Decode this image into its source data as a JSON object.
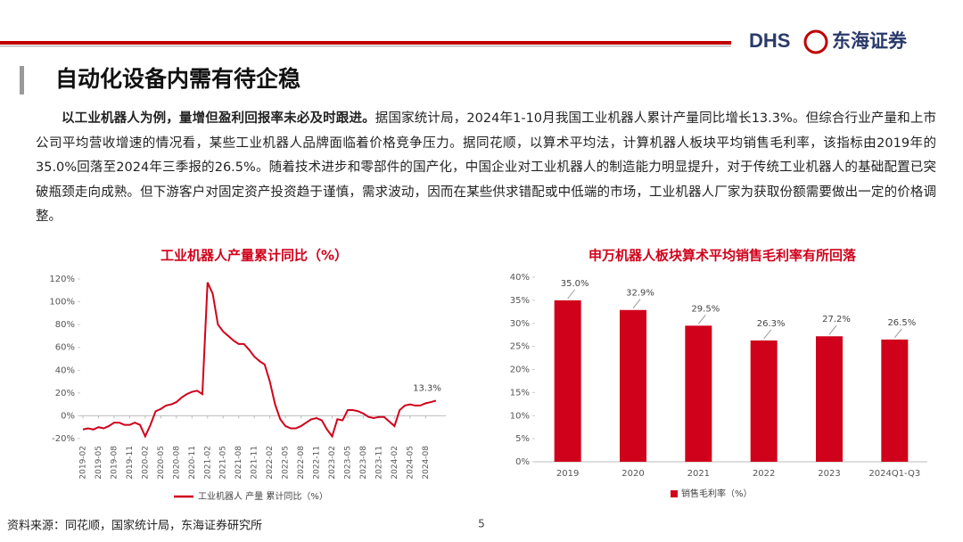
{
  "header": {
    "title": "自动化设备内需有待企稳",
    "logo_latin": "DHS",
    "logo_cn": "东海证券"
  },
  "body": {
    "bold": "以工业机器人为例，量增但盈利回报率未必及时跟进。",
    "text": "据国家统计局，2024年1-10月我国工业机器人累计产量同比增长13.3%。但综合行业产量和上市公司平均营收增速的情况看，某些工业机器人品牌面临着价格竞争压力。据同花顺，以算术平均法，计算机器人板块平均销售毛利率，该指标由2019年的35.0%回落至2024年三季报的26.5%。随着技术进步和零部件的国产化，中国企业对工业机器人的制造能力明显提升，对于传统工业机器人的基础配置已突破瓶颈走向成熟。但下游客户对固定资产投资趋于谨慎，需求波动，因而在某些供求错配或中低端的市场，工业机器人厂家为获取份额需要做出一定的价格调整。"
  },
  "footer": {
    "source": "资料来源：同花顺，国家统计局，东海证券研究所",
    "page": "5"
  },
  "chart_data": [
    {
      "type": "line",
      "title": "工业机器人产量累计同比（%）",
      "categories": [
        "2019-02",
        null,
        null,
        "2019-05",
        null,
        null,
        "2019-08",
        null,
        null,
        "2019-11",
        null,
        null,
        "2020-02",
        null,
        null,
        "2020-05",
        null,
        null,
        "2020-08",
        null,
        null,
        "2020-11",
        null,
        null,
        "2021-02",
        null,
        null,
        "2021-05",
        null,
        null,
        "2021-08",
        null,
        null,
        "2021-11",
        null,
        null,
        "2022-02",
        null,
        null,
        "2022-05",
        null,
        null,
        "2022-08",
        null,
        null,
        "2022-11",
        null,
        null,
        "2023-02",
        null,
        null,
        "2023-05",
        null,
        null,
        "2023-08",
        null,
        null,
        "2023-11",
        null,
        null,
        "2024-02",
        null,
        null,
        "2024-05",
        null,
        null,
        "2024-08",
        null,
        null
      ],
      "series": [
        {
          "name": "工业机器人 产量 累计同比（%）",
          "color": "#d0021b",
          "values": [
            -12,
            -11,
            -12,
            -10,
            -11,
            -9,
            -6,
            -6,
            -8,
            -8,
            -6,
            -8,
            -18,
            -8,
            4,
            6,
            9,
            10,
            12,
            16,
            19,
            21,
            22,
            19,
            117,
            107,
            80,
            74,
            70,
            66,
            63,
            63,
            58,
            52,
            48,
            45,
            30,
            10,
            -3,
            -9,
            -11,
            -11,
            -9,
            -6,
            -3,
            -2,
            -4,
            -12,
            -18,
            -3,
            -4,
            5,
            5,
            4,
            2,
            -1,
            -2,
            -1,
            -1,
            -5,
            -9,
            5,
            9,
            10,
            9,
            9,
            11,
            12,
            13.3
          ],
          "value_labels": [
            null,
            null,
            null,
            null,
            null,
            null,
            null,
            null,
            null,
            null,
            null,
            null,
            null,
            null,
            null,
            null,
            null,
            null,
            null,
            null,
            null,
            null,
            null,
            null,
            null,
            null,
            null,
            null,
            null,
            null,
            null,
            null,
            null,
            null,
            null,
            null,
            null,
            null,
            null,
            null,
            null,
            null,
            null,
            null,
            null,
            null,
            null,
            null,
            null,
            null,
            null,
            null,
            null,
            null,
            null,
            null,
            null,
            null,
            null,
            null,
            null,
            null,
            null,
            null,
            null,
            null,
            null,
            null,
            "13.3%"
          ]
        }
      ],
      "ylim": [
        -20,
        120
      ],
      "yticks": [
        {
          "value": -20,
          "label": "-20%"
        },
        {
          "value": 0,
          "label": "0%"
        },
        {
          "value": 20,
          "label": "20%"
        },
        {
          "value": 40,
          "label": "40%"
        },
        {
          "value": 60,
          "label": "60%"
        },
        {
          "value": 80,
          "label": "80%"
        },
        {
          "value": 100,
          "label": "100%"
        },
        {
          "value": 120,
          "label": "120%"
        }
      ],
      "grid": false,
      "legend": "bottom"
    },
    {
      "type": "bar",
      "title": "申万机器人板块算术平均销售毛利率有所回落",
      "categories": [
        "2019",
        "2020",
        "2021",
        "2022",
        "2023",
        "2024Q1-Q3"
      ],
      "series": [
        {
          "name": "销售毛利率（%）",
          "color": "#d0021b",
          "values": [
            35.0,
            32.9,
            29.5,
            26.3,
            27.2,
            26.5
          ],
          "value_labels": [
            "35.0%",
            "32.9%",
            "29.5%",
            "26.3%",
            "27.2%",
            "26.5%"
          ]
        }
      ],
      "ylim": [
        0,
        40
      ],
      "yticks": [
        {
          "value": 0,
          "label": "0%"
        },
        {
          "value": 5,
          "label": "5%"
        },
        {
          "value": 10,
          "label": "10%"
        },
        {
          "value": 15,
          "label": "15%"
        },
        {
          "value": 20,
          "label": "20%"
        },
        {
          "value": 25,
          "label": "25%"
        },
        {
          "value": 30,
          "label": "30%"
        },
        {
          "value": 35,
          "label": "35%"
        },
        {
          "value": 40,
          "label": "40%"
        }
      ],
      "grid": false,
      "legend": "bottom"
    }
  ]
}
